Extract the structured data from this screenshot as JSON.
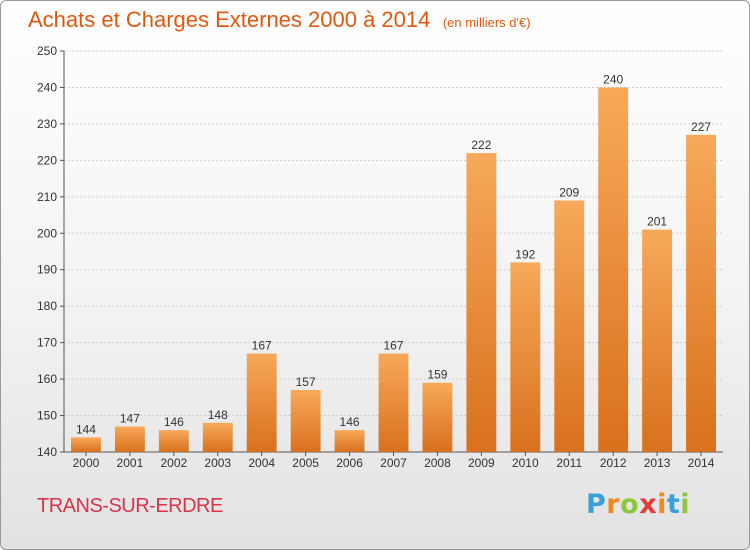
{
  "title": "Achats et Charges Externes 2000 à 2014",
  "unit_note": "(en milliers d'€)",
  "commune": "TRANS-SUR-ERDRE",
  "logo": {
    "letters": [
      "P",
      "r",
      "o",
      "x",
      "i",
      "t",
      "i"
    ],
    "colors": [
      "#3aa0d8",
      "#f08a1e",
      "#8cc63f",
      "#e23b3b",
      "#f08a1e",
      "#3aa0d8",
      "#8cc63f"
    ]
  },
  "colors": {
    "bar_light": "#f7a95a",
    "bar_dark": "#d9701c",
    "title": "#e0580f",
    "commune": "#d9344a"
  },
  "chart_data": {
    "type": "bar",
    "title": "Achats et Charges Externes 2000 à 2014",
    "subtitle": "(en milliers d'€)",
    "xlabel": "",
    "ylabel": "",
    "categories": [
      "2000",
      "2001",
      "2002",
      "2003",
      "2004",
      "2005",
      "2006",
      "2007",
      "2008",
      "2009",
      "2010",
      "2011",
      "2012",
      "2013",
      "2014"
    ],
    "values": [
      144,
      147,
      146,
      148,
      167,
      157,
      146,
      167,
      159,
      222,
      192,
      209,
      240,
      201,
      227
    ],
    "ylim": [
      140,
      250
    ],
    "yticks": [
      140,
      150,
      160,
      170,
      180,
      190,
      200,
      210,
      220,
      230,
      240,
      250
    ],
    "grid": true,
    "legend": "none"
  }
}
